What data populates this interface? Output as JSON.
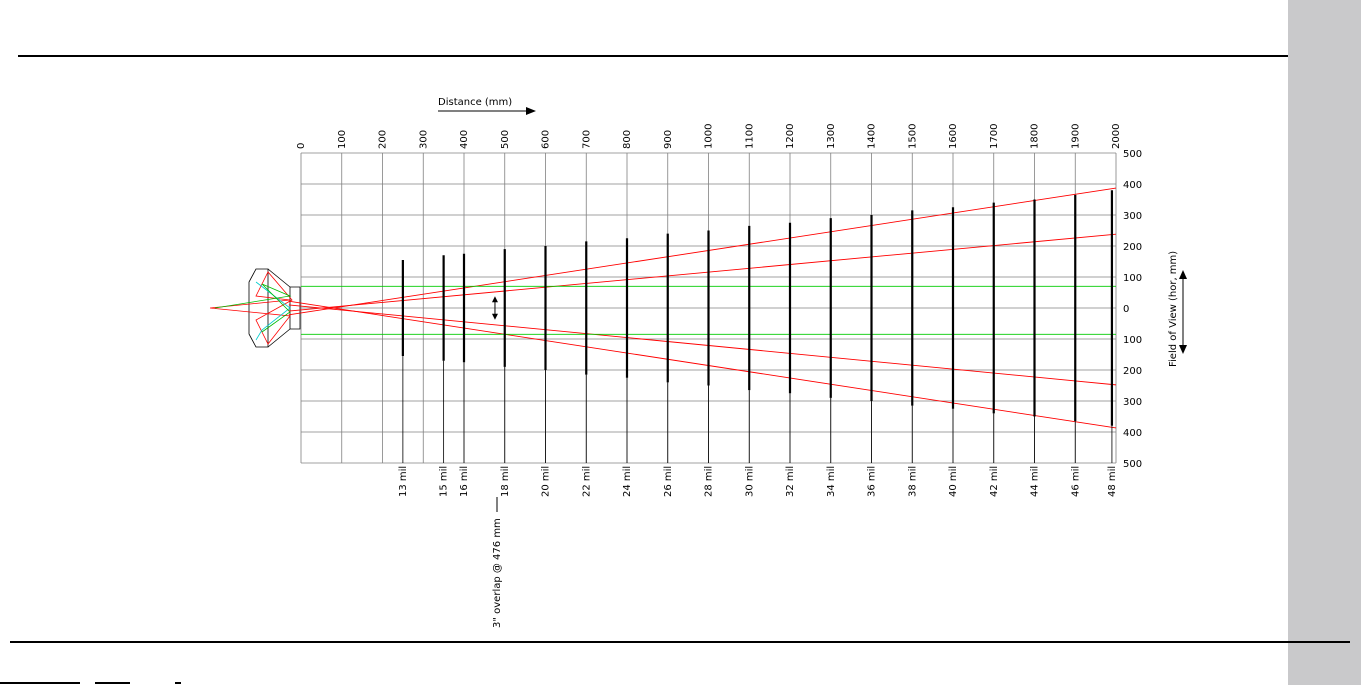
{
  "chart_data": {
    "type": "line",
    "xlabel": "Distance  (mm)",
    "ylabel": "Field of View  (hor, mm)",
    "xlim": [
      0,
      2000
    ],
    "ylim": [
      -500,
      500
    ],
    "x_ticks": [
      "0",
      "100",
      "200",
      "300",
      "400",
      "500",
      "600",
      "700",
      "800",
      "900",
      "1000",
      "1100",
      "1200",
      "1300",
      "1400",
      "1500",
      "1600",
      "1700",
      "1800",
      "1900",
      "2000"
    ],
    "y_tick_values": [
      500,
      400,
      300,
      200,
      100,
      0,
      -100,
      -200,
      -300,
      -400,
      -500
    ],
    "y_tick_labels": [
      "500",
      "400",
      "300",
      "200",
      "100",
      "0",
      "100",
      "200",
      "300",
      "400",
      "500"
    ],
    "grid": true,
    "series": [
      {
        "x": [
          -30,
          2000
        ],
        "y": [
          -22,
          387
        ],
        "color": "#ff0000"
      },
      {
        "x": [
          -30,
          2000
        ],
        "y": [
          22,
          -387
        ],
        "color": "#ff0000"
      },
      {
        "x": [
          -30,
          2000
        ],
        "y": [
          -10,
          238
        ],
        "color": "#ff0000"
      },
      {
        "x": [
          -30,
          2000
        ],
        "y": [
          10,
          -248
        ],
        "color": "#ff0000"
      },
      {
        "x": [
          0,
          2000
        ],
        "y": [
          70,
          70
        ],
        "color": "#00cc00"
      },
      {
        "x": [
          0,
          2000
        ],
        "y": [
          -85,
          -85
        ],
        "color": "#00cc00"
      }
    ],
    "resolution_bars": [
      {
        "label": "13  mil",
        "x": 250,
        "half_width": 155
      },
      {
        "label": "15  mil",
        "x": 350,
        "half_width": 170
      },
      {
        "label": "16  mil",
        "x": 400,
        "half_width": 175
      },
      {
        "label": "18  mil",
        "x": 500,
        "half_width": 190
      },
      {
        "label": "20  mil",
        "x": 600,
        "half_width": 200
      },
      {
        "label": "22  mil",
        "x": 700,
        "half_width": 215
      },
      {
        "label": "24  mil",
        "x": 800,
        "half_width": 225
      },
      {
        "label": "26  mil",
        "x": 900,
        "half_width": 240
      },
      {
        "label": "28  mil",
        "x": 1000,
        "half_width": 250
      },
      {
        "label": "30  mil",
        "x": 1100,
        "half_width": 265
      },
      {
        "label": "32  mil",
        "x": 1200,
        "half_width": 275
      },
      {
        "label": "34  mil",
        "x": 1300,
        "half_width": 290
      },
      {
        "label": "36  mil",
        "x": 1400,
        "half_width": 300
      },
      {
        "label": "38  mil",
        "x": 1500,
        "half_width": 315
      },
      {
        "label": "40  mil",
        "x": 1600,
        "half_width": 325
      },
      {
        "label": "42  mil",
        "x": 1700,
        "half_width": 340
      },
      {
        "label": "44  mil",
        "x": 1800,
        "half_width": 350
      },
      {
        "label": "46  mil",
        "x": 1900,
        "half_width": 365
      },
      {
        "label": "48  mil",
        "x": 1990,
        "half_width": 380
      }
    ],
    "annotation": {
      "text": "3\" overlap @ 476  mm",
      "x": 476,
      "y_from": -38,
      "y_to": 38
    }
  }
}
